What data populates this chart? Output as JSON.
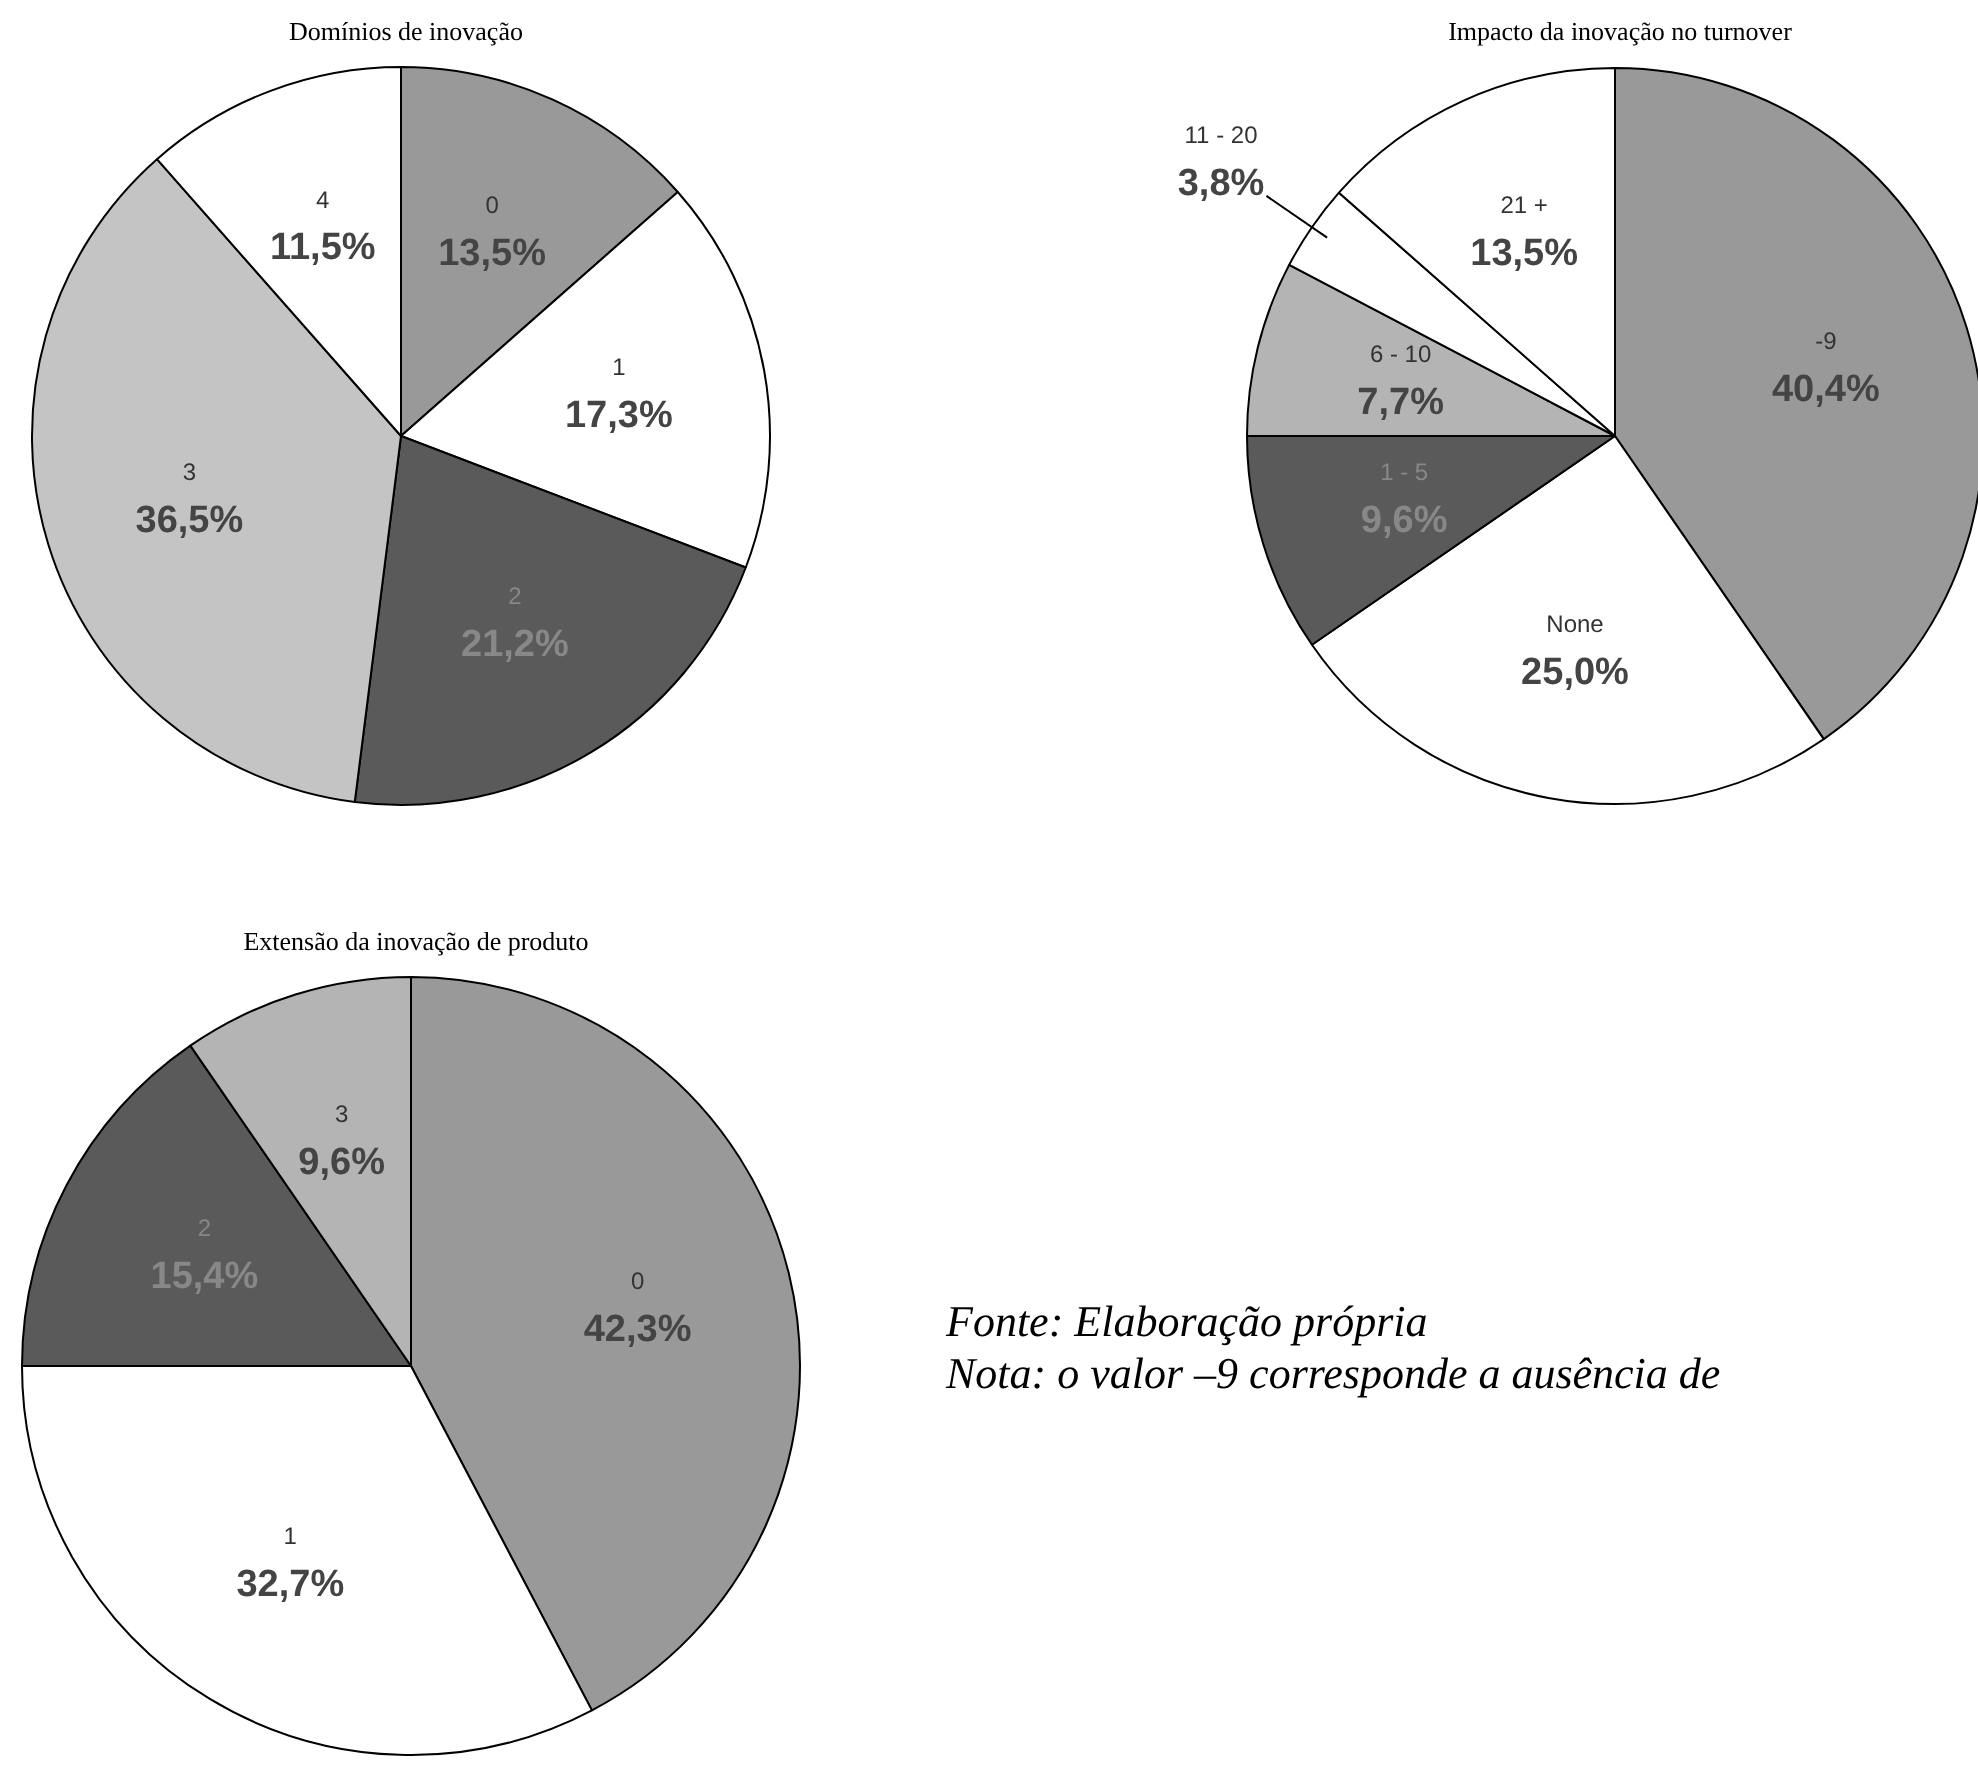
{
  "chart_data": [
    {
      "type": "pie",
      "title": "Domínios de inovação",
      "categories": [
        "0",
        "1",
        "2",
        "3",
        "4"
      ],
      "values": [
        13.5,
        17.3,
        21.2,
        36.5,
        11.5
      ],
      "value_labels": [
        "13,5%",
        "17,3%",
        "21,2%",
        "36,5%",
        "11,5%"
      ],
      "colors": [
        "#999999",
        "#ffffff",
        "#5a5a5a",
        "#c4c4c4",
        "#ffffff"
      ]
    },
    {
      "type": "pie",
      "title": "Impacto da inovação no turnover",
      "categories": [
        "-9",
        "None",
        "1 - 5",
        "6 - 10",
        "11 - 20",
        "21 +"
      ],
      "values": [
        40.4,
        25.0,
        9.6,
        7.7,
        3.8,
        13.5
      ],
      "value_labels": [
        "40,4%",
        "25,0%",
        "9,6%",
        "7,7%",
        "3,8%",
        "13,5%"
      ],
      "colors": [
        "#999999",
        "#ffffff",
        "#5a5a5a",
        "#b4b4b4",
        "#ffffff",
        "#ffffff"
      ]
    },
    {
      "type": "pie",
      "title": "Extensão da inovação de produto",
      "categories": [
        "0",
        "1",
        "2",
        "3"
      ],
      "values": [
        42.3,
        32.7,
        15.4,
        9.6
      ],
      "value_labels": [
        "42,3%",
        "32,7%",
        "15,4%",
        "9,6%"
      ],
      "colors": [
        "#999999",
        "#ffffff",
        "#5a5a5a",
        "#b4b4b4"
      ],
      "annotations": [
        "Fonte: Elaboração própria",
        "Nota: o valor –9 corresponde a ausência de"
      ]
    }
  ]
}
